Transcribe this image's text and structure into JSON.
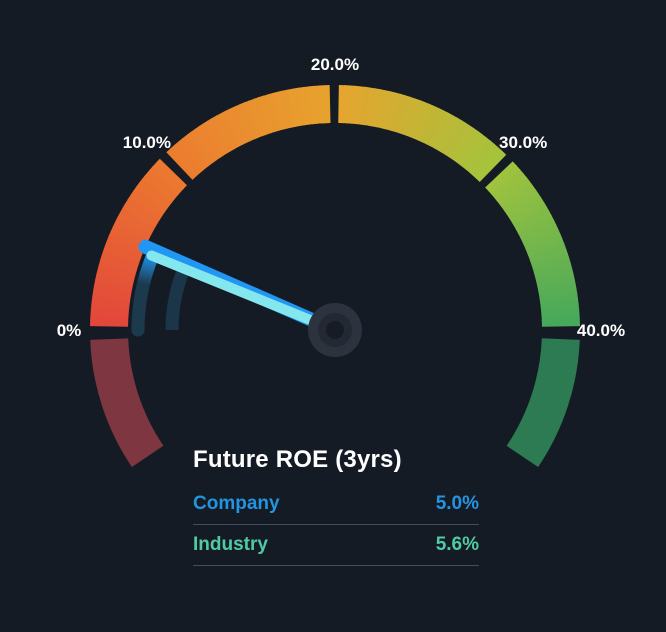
{
  "chart_data": {
    "type": "gauge",
    "title": "Future ROE (3yrs)",
    "unit": "%",
    "min": 0,
    "max": 40,
    "start_angle_deg": 180,
    "end_angle_deg": 0,
    "ticks": [
      {
        "value": 0,
        "label": "0%"
      },
      {
        "value": 10,
        "label": "10.0%"
      },
      {
        "value": 20,
        "label": "20.0%"
      },
      {
        "value": 30,
        "label": "30.0%"
      },
      {
        "value": 40,
        "label": "40.0%"
      }
    ],
    "needle_value": 5.0,
    "series": [
      {
        "name": "Company",
        "value": 5.0,
        "display": "5.0%",
        "color": "#2394df"
      },
      {
        "name": "Industry",
        "value": 5.6,
        "display": "5.6%",
        "color": "#4ecba6"
      }
    ],
    "arc_gradient": [
      "#e2453b",
      "#ec7b2f",
      "#e7a42e",
      "#a3c43c",
      "#43a85c"
    ],
    "under_min_color": "#7e3740",
    "over_max_color": "#2c7b52",
    "marker_dark_color": "#1c3a4e",
    "needle": {
      "body": "#84e7ee",
      "edge": "#2196f3"
    },
    "background": "#151b24"
  },
  "info": {
    "title": "Future ROE (3yrs)",
    "rows": [
      {
        "label": "Company",
        "value": "5.0%"
      },
      {
        "label": "Industry",
        "value": "5.6%"
      }
    ]
  }
}
